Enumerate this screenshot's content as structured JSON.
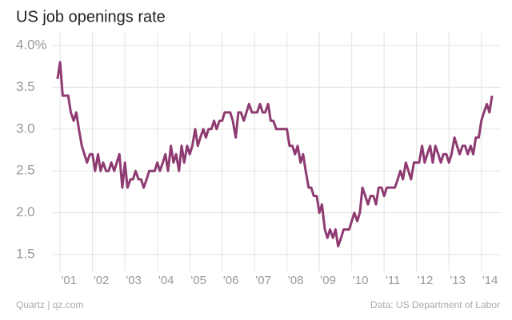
{
  "chart_data": {
    "type": "line",
    "title": "US job openings rate",
    "source": "Data: US Department of Labor",
    "credit": "Quartz | qz.com",
    "color": "#8e3b72",
    "grid": true,
    "xlim": [
      2000.75,
      2014.6
    ],
    "ylim": [
      1.3,
      4.1
    ],
    "xticks": [
      {
        "value": 2001,
        "label": "'01"
      },
      {
        "value": 2002,
        "label": "'02"
      },
      {
        "value": 2003,
        "label": "'03"
      },
      {
        "value": 2004,
        "label": "'04"
      },
      {
        "value": 2005,
        "label": "'05"
      },
      {
        "value": 2006,
        "label": "'06"
      },
      {
        "value": 2007,
        "label": "'07"
      },
      {
        "value": 2008,
        "label": "'08"
      },
      {
        "value": 2009,
        "label": "'09"
      },
      {
        "value": 2010,
        "label": "'10"
      },
      {
        "value": 2011,
        "label": "'11"
      },
      {
        "value": 2012,
        "label": "'12"
      },
      {
        "value": 2013,
        "label": "'13"
      },
      {
        "value": 2014,
        "label": "'14"
      }
    ],
    "yticks": [
      1.5,
      {
        "value": 2,
        "label": "2.0"
      },
      2.5,
      {
        "value": 3,
        "label": "3.0"
      },
      3.5,
      {
        "value": 4,
        "label": "4.0%"
      }
    ],
    "x": [
      2000.92,
      2001.0,
      2001.08,
      2001.17,
      2001.25,
      2001.33,
      2001.42,
      2001.5,
      2001.58,
      2001.67,
      2001.75,
      2001.83,
      2001.92,
      2002.0,
      2002.08,
      2002.17,
      2002.25,
      2002.33,
      2002.42,
      2002.5,
      2002.58,
      2002.67,
      2002.75,
      2002.83,
      2002.92,
      2003.0,
      2003.08,
      2003.17,
      2003.25,
      2003.33,
      2003.42,
      2003.5,
      2003.58,
      2003.67,
      2003.75,
      2003.83,
      2003.92,
      2004.0,
      2004.08,
      2004.17,
      2004.25,
      2004.33,
      2004.42,
      2004.5,
      2004.58,
      2004.67,
      2004.75,
      2004.83,
      2004.92,
      2005.0,
      2005.08,
      2005.17,
      2005.25,
      2005.33,
      2005.42,
      2005.5,
      2005.58,
      2005.67,
      2005.75,
      2005.83,
      2005.92,
      2006.0,
      2006.08,
      2006.17,
      2006.25,
      2006.33,
      2006.42,
      2006.5,
      2006.58,
      2006.67,
      2006.75,
      2006.83,
      2006.92,
      2007.0,
      2007.08,
      2007.17,
      2007.25,
      2007.33,
      2007.42,
      2007.5,
      2007.58,
      2007.67,
      2007.75,
      2007.83,
      2007.92,
      2008.0,
      2008.08,
      2008.17,
      2008.25,
      2008.33,
      2008.42,
      2008.5,
      2008.58,
      2008.67,
      2008.75,
      2008.83,
      2008.92,
      2009.0,
      2009.08,
      2009.17,
      2009.25,
      2009.33,
      2009.42,
      2009.5,
      2009.58,
      2009.67,
      2009.75,
      2009.83,
      2009.92,
      2010.0,
      2010.08,
      2010.17,
      2010.25,
      2010.33,
      2010.42,
      2010.5,
      2010.58,
      2010.67,
      2010.75,
      2010.83,
      2010.92,
      2011.0,
      2011.08,
      2011.17,
      2011.25,
      2011.33,
      2011.42,
      2011.5,
      2011.58,
      2011.67,
      2011.75,
      2011.83,
      2011.92,
      2012.0,
      2012.08,
      2012.17,
      2012.25,
      2012.33,
      2012.42,
      2012.5,
      2012.58,
      2012.67,
      2012.75,
      2012.83,
      2012.92,
      2013.0,
      2013.08,
      2013.17,
      2013.25,
      2013.33,
      2013.42,
      2013.5,
      2013.58,
      2013.67,
      2013.75,
      2013.83,
      2013.92,
      2014.0,
      2014.08,
      2014.17,
      2014.25,
      2014.33
    ],
    "values": [
      3.6,
      3.8,
      3.4,
      3.4,
      3.4,
      3.2,
      3.1,
      3.2,
      3.0,
      2.8,
      2.7,
      2.6,
      2.7,
      2.7,
      2.5,
      2.7,
      2.5,
      2.6,
      2.5,
      2.5,
      2.6,
      2.5,
      2.6,
      2.7,
      2.3,
      2.6,
      2.3,
      2.4,
      2.4,
      2.5,
      2.4,
      2.4,
      2.3,
      2.4,
      2.5,
      2.5,
      2.5,
      2.6,
      2.5,
      2.6,
      2.7,
      2.5,
      2.8,
      2.6,
      2.7,
      2.5,
      2.8,
      2.6,
      2.8,
      2.7,
      2.8,
      3.0,
      2.8,
      2.9,
      3.0,
      2.9,
      3.0,
      3.0,
      3.1,
      3.0,
      3.1,
      3.1,
      3.2,
      3.2,
      3.2,
      3.1,
      2.9,
      3.2,
      3.2,
      3.1,
      3.2,
      3.3,
      3.2,
      3.2,
      3.2,
      3.3,
      3.2,
      3.2,
      3.3,
      3.1,
      3.1,
      3.0,
      3.0,
      3.0,
      3.0,
      3.0,
      2.8,
      2.8,
      2.7,
      2.8,
      2.6,
      2.7,
      2.5,
      2.3,
      2.3,
      2.2,
      2.2,
      2.0,
      2.1,
      1.8,
      1.7,
      1.8,
      1.7,
      1.8,
      1.6,
      1.7,
      1.8,
      1.8,
      1.8,
      1.9,
      2.0,
      1.9,
      2.0,
      2.3,
      2.2,
      2.1,
      2.2,
      2.2,
      2.1,
      2.3,
      2.3,
      2.2,
      2.3,
      2.3,
      2.3,
      2.3,
      2.4,
      2.5,
      2.4,
      2.6,
      2.5,
      2.4,
      2.6,
      2.6,
      2.6,
      2.8,
      2.6,
      2.7,
      2.8,
      2.6,
      2.8,
      2.7,
      2.6,
      2.7,
      2.7,
      2.6,
      2.7,
      2.9,
      2.8,
      2.7,
      2.8,
      2.8,
      2.7,
      2.8,
      2.7,
      2.9,
      2.9,
      3.1,
      3.2,
      3.3,
      3.2,
      3.4
    ]
  }
}
